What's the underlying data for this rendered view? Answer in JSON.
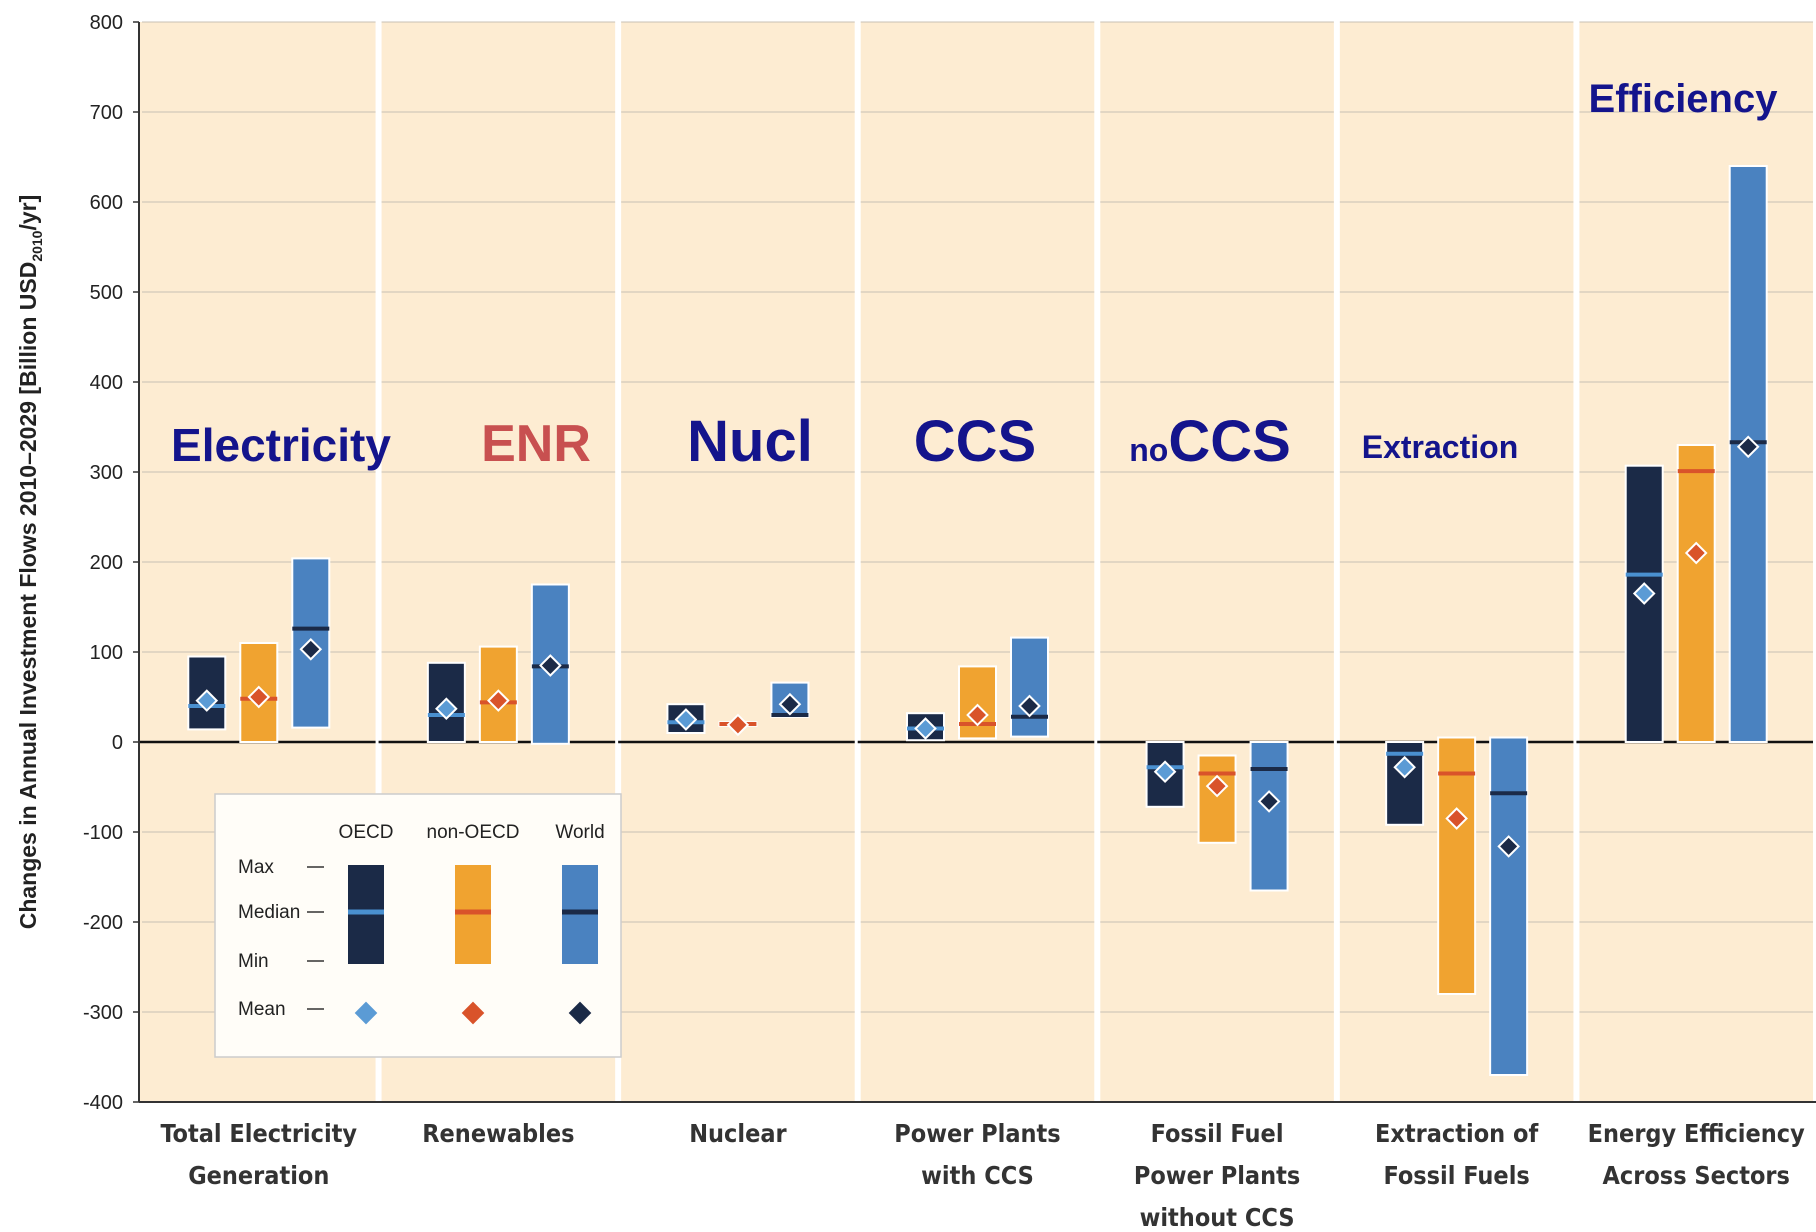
{
  "chart_data": {
    "type": "range",
    "ylabel": {
      "text": "Changes in Annual Investment Flows 2010–2029 [Billion USD",
      "sub": "2010",
      "end": "/yr]"
    },
    "categories": [
      [
        "Total Electricity",
        "Generation"
      ],
      [
        "Renewables"
      ],
      [
        "Nuclear"
      ],
      [
        "Power Plants",
        "with CCS"
      ],
      [
        "Fossil Fuel",
        "Power Plants",
        "without CCS"
      ],
      [
        "Extraction of",
        "Fossil Fuels"
      ],
      [
        "Energy Efficiency",
        "Across Sectors"
      ]
    ],
    "annotations": [
      [
        "Electricity"
      ],
      [
        "ENR"
      ],
      [
        "Nucl"
      ],
      [
        "CCS"
      ],
      [
        "no",
        "CCS"
      ],
      [
        "Extraction"
      ],
      [
        "Efficiency"
      ]
    ],
    "annotation_colors": [
      "#14148c",
      "#c85050",
      "#14148c",
      "#14148c",
      "#14148c",
      "#14148c",
      "#14148c"
    ],
    "series": [
      {
        "name": "OECD",
        "color": "#1b2a47",
        "median_color": "#4a90d0",
        "mean_color": "#5b9bd5",
        "min": [
          14,
          0,
          10,
          2,
          -72,
          -92,
          0
        ],
        "max": [
          95,
          88,
          42,
          32,
          0,
          0,
          307
        ],
        "median": [
          40,
          30,
          22,
          15,
          -28,
          -13,
          186
        ],
        "mean": [
          46,
          37,
          25,
          15,
          -33,
          -28,
          165
        ]
      },
      {
        "name": "non-OECD",
        "color": "#f0a330",
        "median_color": "#d9532a",
        "mean_color": "#d9532a",
        "min": [
          0,
          0,
          18,
          4,
          -112,
          -280,
          0
        ],
        "max": [
          110,
          106,
          22,
          84,
          -15,
          5,
          330
        ],
        "median": [
          48,
          44,
          20,
          20,
          -35,
          -35,
          301
        ],
        "mean": [
          50,
          46,
          19,
          30,
          -49,
          -85,
          210
        ]
      },
      {
        "name": "World",
        "color": "#4a82c0",
        "median_color": "#1b2a47",
        "mean_color": "#1b2a47",
        "min": [
          16,
          -2,
          28,
          6,
          -165,
          -370,
          0
        ],
        "max": [
          204,
          175,
          66,
          116,
          0,
          5,
          640
        ],
        "median": [
          126,
          84,
          30,
          28,
          -30,
          -57,
          333
        ],
        "mean": [
          103,
          85,
          42,
          40,
          -66,
          -116,
          328
        ]
      }
    ],
    "legend_rows": [
      "Max",
      "Median",
      "Min",
      "Mean"
    ],
    "ylim": [
      -400,
      800
    ],
    "yticks": [
      -400,
      -300,
      -200,
      -100,
      0,
      100,
      200,
      300,
      400,
      500,
      600,
      700,
      800
    ],
    "grid": true
  }
}
